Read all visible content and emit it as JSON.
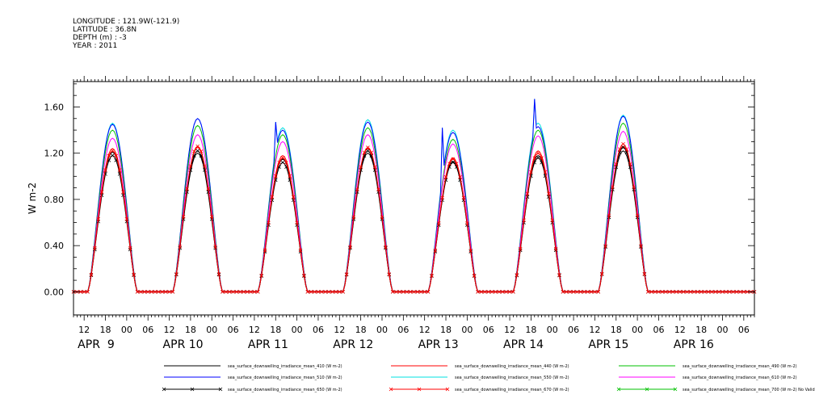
{
  "header": {
    "longitude": "LONGITUDE : 121.9W(-121.9)",
    "latitude": "LATITUDE : 36.8N",
    "depth": "DEPTH (m) : -3",
    "year": "YEAR : 2011"
  },
  "chart_data": {
    "type": "line",
    "ylabel": "W m-2",
    "ylim": [
      -0.2,
      1.82
    ],
    "yticks": [
      "0.00",
      "0.40",
      "0.80",
      "1.20",
      "1.60"
    ],
    "ytick_values": [
      0.0,
      0.4,
      0.8,
      1.2,
      1.6
    ],
    "x_hour_ticks": [
      "12",
      "18",
      "00",
      "06",
      "12",
      "18",
      "00",
      "06",
      "12",
      "18",
      "00",
      "06",
      "12",
      "18",
      "00",
      "06",
      "12",
      "18",
      "00",
      "06",
      "12",
      "18",
      "00",
      "06",
      "12",
      "18",
      "00",
      "06",
      "12",
      "18",
      "00",
      "06"
    ],
    "x_date_labels": [
      "APR  9",
      "APR 10",
      "APR 11",
      "APR 12",
      "APR 13",
      "APR 14",
      "APR 15",
      "APR 16"
    ],
    "days": [
      "APR 9",
      "APR 10",
      "APR 11",
      "APR 12",
      "APR 13",
      "APR 14",
      "APR 15"
    ],
    "day_peak_hour": 20,
    "day_half_width_hours": 7,
    "series": [
      {
        "name": "sea_surface_downwelling_irradiance_mean_410 (W m-2)",
        "color": "#000000",
        "marker": "",
        "peaks": [
          1.21,
          1.2,
          1.15,
          1.2,
          1.13,
          1.18,
          1.22
        ]
      },
      {
        "name": "sea_surface_downwelling_irradiance_mean_440 (W m-2)",
        "color": "#ff0000",
        "marker": "",
        "peaks": [
          1.24,
          1.25,
          1.18,
          1.24,
          1.16,
          1.22,
          1.26
        ]
      },
      {
        "name": "sea_surface_downwelling_irradiance_mean_490 (W m-2)",
        "color": "#00c000",
        "marker": "",
        "peaks": [
          1.4,
          1.44,
          1.36,
          1.42,
          1.32,
          1.4,
          1.46
        ]
      },
      {
        "name": "sea_surface_downwelling_irradiance_mean_510 (W m-2)",
        "color": "#0000ff",
        "marker": "",
        "peaks": [
          1.45,
          1.5,
          1.4,
          1.47,
          1.38,
          1.43,
          1.52
        ]
      },
      {
        "name": "sea_surface_downwelling_irradiance_mean_550 (W m-2)",
        "color": "#00e0e0",
        "marker": "",
        "peaks": [
          1.46,
          1.5,
          1.42,
          1.49,
          1.4,
          1.46,
          1.53
        ]
      },
      {
        "name": "sea_surface_downwelling_irradiance_mean_610 (W m-2)",
        "color": "#ff00ff",
        "marker": "",
        "peaks": [
          1.33,
          1.36,
          1.3,
          1.36,
          1.28,
          1.35,
          1.39
        ]
      },
      {
        "name": "sea_surface_downwelling_irradiance_mean_650 (W m-2)",
        "color": "#000000",
        "marker": "x",
        "peaks": [
          1.18,
          1.22,
          1.12,
          1.22,
          1.12,
          1.16,
          1.25
        ]
      },
      {
        "name": "sea_surface_downwelling_irradiance_mean_670 (W m-2)",
        "color": "#ff0000",
        "marker": "x",
        "peaks": [
          1.22,
          1.26,
          1.16,
          1.25,
          1.15,
          1.2,
          1.28
        ]
      },
      {
        "name": "sea_surface_downwelling_irradiance_mean_700 (W m-2) No Valid Data",
        "color": "#00c000",
        "marker": "x",
        "peaks": []
      }
    ],
    "spikes": [
      {
        "day": "APR 11",
        "hour": 18,
        "value": 1.47
      },
      {
        "day": "APR 14",
        "hour": 19,
        "value": 1.67
      },
      {
        "day": "APR 13",
        "hour": 17,
        "value": 1.42
      }
    ],
    "grid": false,
    "legend_position": "bottom"
  }
}
